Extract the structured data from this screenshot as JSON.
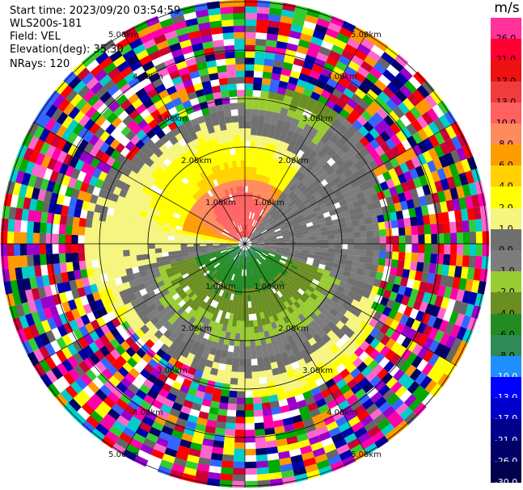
{
  "header": {
    "start_time": "Start time: 2023/09/20 03:54:59",
    "instrument": "WLS200s-181",
    "field": "Field: VEL",
    "elevation": "Elevation(deg): 35.30",
    "nrays": "NRays: 120"
  },
  "range_rings": [
    {
      "km": 1.0,
      "label": "1.00km"
    },
    {
      "km": 2.0,
      "label": "2.00km"
    },
    {
      "km": 3.0,
      "label": "3.00km"
    },
    {
      "km": 4.0,
      "label": "4.00km"
    },
    {
      "km": 5.0,
      "label": "5.00km"
    }
  ],
  "colorbar": {
    "units": "m/s",
    "levels": [
      {
        "label": "26.0",
        "color": "#ff3399"
      },
      {
        "label": "21.0",
        "color": "#ff0033"
      },
      {
        "label": "17.0",
        "color": "#ee1111"
      },
      {
        "label": "13.0",
        "color": "#f03c3c"
      },
      {
        "label": "10.0",
        "color": "#ff6060"
      },
      {
        "label": "8.0",
        "color": "#ff8a5c"
      },
      {
        "label": "6.0",
        "color": "#ff9d00"
      },
      {
        "label": "4.0",
        "color": "#ffd200"
      },
      {
        "label": "2.0",
        "color": "#ffff00"
      },
      {
        "label": "1.0",
        "color": "#f5f580"
      },
      {
        "label": "0.0",
        "color": "#707070"
      },
      {
        "label": "-1.0",
        "color": "#7d7d7d"
      },
      {
        "label": "-2.0",
        "color": "#99cc33"
      },
      {
        "label": "-4.0",
        "color": "#6b8e23"
      },
      {
        "label": "-6.0",
        "color": "#228b22"
      },
      {
        "label": "-8.0",
        "color": "#2e8b57"
      },
      {
        "label": "-10.0",
        "color": "#1e90ff"
      },
      {
        "label": "-13.0",
        "color": "#0000ff"
      },
      {
        "label": "-17.0",
        "color": "#0000cc"
      },
      {
        "label": "-21.0",
        "color": "#00008b"
      },
      {
        "label": "-26.0",
        "color": "#000066"
      },
      {
        "label": "-30.0",
        "color": "#00004d"
      }
    ]
  },
  "noise_colors": [
    "#ff00aa",
    "#0000aa",
    "#00aa00",
    "#ff0000",
    "#ffff00",
    "#ff66cc",
    "#000066",
    "#9900cc",
    "#00cccc",
    "#ff9900",
    "#666666",
    "#3366ff",
    "#cc0033",
    "#33cc33",
    "#ffffff"
  ]
}
